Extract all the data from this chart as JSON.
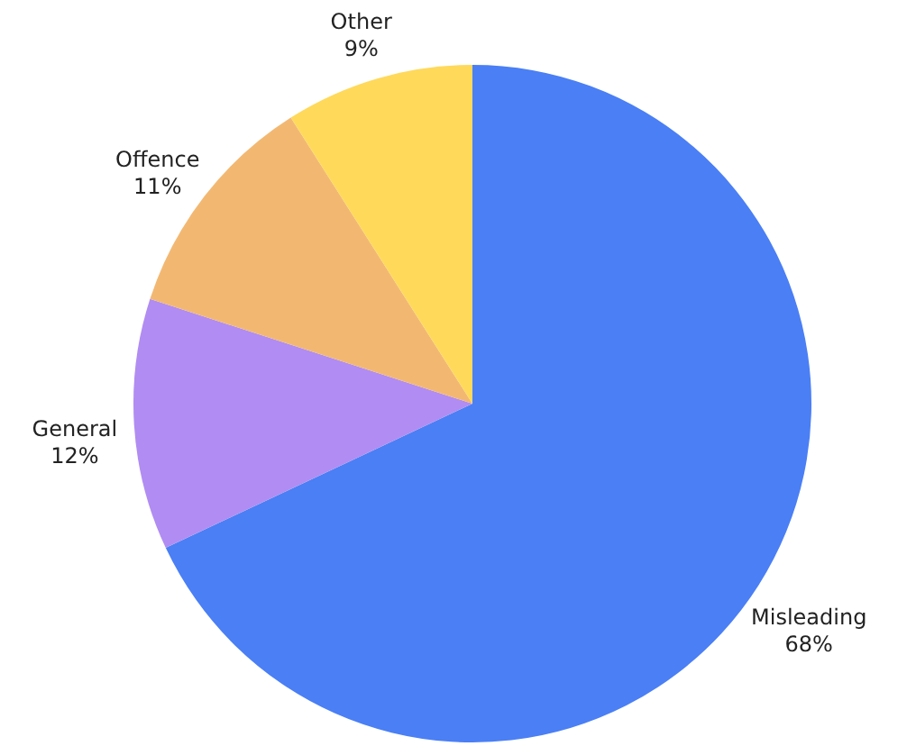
{
  "chart_data": {
    "type": "pie",
    "categories": [
      "Misleading",
      "General",
      "Offence",
      "Other"
    ],
    "values": [
      68,
      12,
      11,
      9
    ],
    "value_labels": [
      "68%",
      "12%",
      "11%",
      "9%"
    ],
    "colors": [
      "#4a7ff5",
      "#b18cf2",
      "#f2b872",
      "#ffd95a"
    ]
  }
}
